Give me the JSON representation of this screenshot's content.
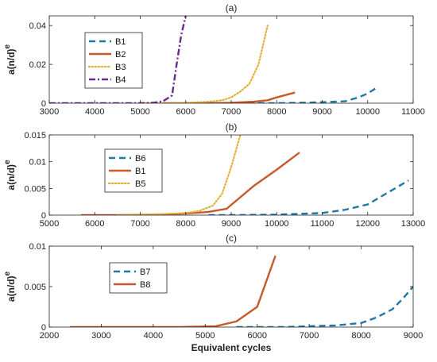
{
  "chart_data": [
    {
      "type": "line",
      "panel_label": "(a)",
      "ylabel_base": "a(n/d)",
      "ylabel_sup": "e",
      "xlabel": "",
      "xlim": [
        3000,
        11000
      ],
      "ylim": [
        0,
        0.045
      ],
      "xticks": [
        3000,
        4000,
        5000,
        6000,
        7000,
        8000,
        9000,
        10000,
        11000
      ],
      "yticks": [
        0,
        0.02,
        0.04
      ],
      "ytick_labels": [
        "0",
        "0.02",
        "0.04"
      ],
      "legend_position": "top-left",
      "series": [
        {
          "name": "B1",
          "color": "#1f77a4",
          "style": "dashed",
          "x": [
            6000,
            7000,
            7500,
            8000,
            8500,
            9000,
            9500,
            9800,
            10000,
            10200
          ],
          "y": [
            0,
            0,
            0,
            0,
            0.0002,
            0.0005,
            0.001,
            0.003,
            0.005,
            0.008
          ]
        },
        {
          "name": "B2",
          "color": "#c8592b",
          "style": "solid",
          "x": [
            5500,
            6000,
            6500,
            7000,
            7500,
            7800,
            8000,
            8400
          ],
          "y": [
            0,
            0,
            0,
            0.0002,
            0.0008,
            0.0015,
            0.003,
            0.0055
          ]
        },
        {
          "name": "B3",
          "color": "#e3b23c",
          "style": "dotted",
          "x": [
            5000,
            5500,
            6000,
            6500,
            6800,
            7000,
            7200,
            7400,
            7600,
            7800
          ],
          "y": [
            0,
            0,
            0.0002,
            0.0008,
            0.0015,
            0.003,
            0.006,
            0.01,
            0.02,
            0.04
          ]
        },
        {
          "name": "B4",
          "color": "#6b2a8a",
          "style": "dashdot",
          "x": [
            3000,
            4000,
            5000,
            5300,
            5500,
            5700,
            5800,
            5900,
            6000
          ],
          "y": [
            0,
            0,
            0,
            0.0003,
            0.001,
            0.004,
            0.02,
            0.035,
            0.045
          ]
        }
      ]
    },
    {
      "type": "line",
      "panel_label": "(b)",
      "ylabel_base": "a(n/d)",
      "ylabel_sup": "e",
      "xlabel": "",
      "xlim": [
        5000,
        13000
      ],
      "ylim": [
        0,
        0.015
      ],
      "xticks": [
        5000,
        6000,
        7000,
        8000,
        9000,
        10000,
        11000,
        12000,
        13000
      ],
      "yticks": [
        0,
        0.005,
        0.01,
        0.015
      ],
      "ytick_labels": [
        "0",
        "0.005",
        "0.01",
        "0.015"
      ],
      "legend_position": "top-left",
      "series": [
        {
          "name": "B6",
          "color": "#1f77a4",
          "style": "dashed",
          "x": [
            8500,
            9000,
            10000,
            11000,
            11500,
            12000,
            12500,
            12900
          ],
          "y": [
            0,
            0,
            0.0001,
            0.0004,
            0.001,
            0.002,
            0.0045,
            0.0065
          ]
        },
        {
          "name": "B1",
          "color": "#c8592b",
          "style": "solid",
          "x": [
            5700,
            6500,
            7500,
            8000,
            8500,
            8900,
            9500,
            10000,
            10500
          ],
          "y": [
            0,
            0,
            0.0001,
            0.0003,
            0.0006,
            0.0012,
            0.0055,
            0.0085,
            0.0117
          ]
        },
        {
          "name": "B5",
          "color": "#e3b23c",
          "style": "dotted",
          "x": [
            6500,
            7000,
            7500,
            8000,
            8300,
            8600,
            8800,
            9000,
            9200
          ],
          "y": [
            0,
            0.0001,
            0.0002,
            0.0004,
            0.0008,
            0.0018,
            0.004,
            0.009,
            0.015
          ]
        }
      ]
    },
    {
      "type": "line",
      "panel_label": "(c)",
      "ylabel_base": "a(n/d)",
      "ylabel_sup": "e",
      "xlabel": "Equivalent cycles",
      "xlim": [
        2000,
        9000
      ],
      "ylim": [
        0,
        0.01
      ],
      "xticks": [
        2000,
        3000,
        4000,
        5000,
        6000,
        7000,
        8000,
        9000
      ],
      "yticks": [
        0,
        0.005,
        0.01
      ],
      "ytick_labels": [
        "0",
        "0.005",
        "0.01"
      ],
      "legend_position": "top-left",
      "series": [
        {
          "name": "B7",
          "color": "#1f77a4",
          "style": "dashed",
          "x": [
            5600,
            6500,
            7000,
            7500,
            8000,
            8300,
            8600,
            8800,
            9000
          ],
          "y": [
            0,
            0,
            0.0001,
            0.0002,
            0.0005,
            0.0012,
            0.0022,
            0.0035,
            0.005
          ]
        },
        {
          "name": "B8",
          "color": "#c8592b",
          "style": "solid",
          "x": [
            2400,
            3500,
            4500,
            5200,
            5600,
            6000,
            6350
          ],
          "y": [
            0,
            0,
            0,
            0.0001,
            0.0007,
            0.0025,
            0.0088
          ]
        }
      ]
    }
  ]
}
